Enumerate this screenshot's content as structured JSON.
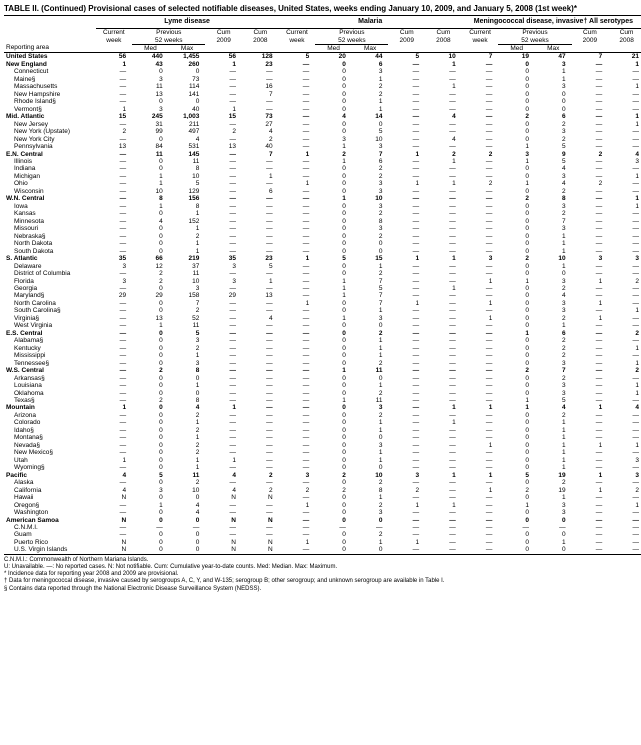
{
  "title": "TABLE II. (Continued) Provisional cases of selected notifiable diseases, United States, weeks ending January 10, 2009, and January 5, 2008 (1st week)*",
  "diseases": [
    "Lyme disease",
    "Malaria",
    "Meningococcal disease, invasive†\nAll serotypes"
  ],
  "subheaders": {
    "current_week": "Current\nweek",
    "previous": "Previous\n52 weeks",
    "med": "Med",
    "max": "Max",
    "cum09": "Cum\n2009",
    "cum08": "Cum\n2008",
    "reporting_area": "Reporting area"
  },
  "footnotes": [
    "C.N.M.I.: Commonwealth of Northern Mariana Islands.",
    "U: Unavailable.    —: No reported cases.    N: Not notifiable.    Cum: Cumulative year-to-date counts.    Med: Median.    Max: Maximum.",
    "* Incidence data for reporting year 2008 and 2009 are provisional.",
    "† Data for meningococcal disease, invasive caused by serogroups A, C, Y, and W-135; serogroup B; other serogroup; and unknown serogroup are available in Table I.",
    "§ Contains data reported through the National Electronic Disease Surveillance System (NEDSS)."
  ],
  "rows": [
    {
      "t": "r",
      "n": "United States",
      "v": [
        "56",
        "440",
        "1,455",
        "56",
        "128",
        "5",
        "20",
        "44",
        "5",
        "10",
        "7",
        "19",
        "47",
        "7",
        "21"
      ]
    },
    {
      "t": "r",
      "n": "New England",
      "v": [
        "1",
        "43",
        "260",
        "1",
        "23",
        "—",
        "0",
        "6",
        "—",
        "1",
        "—",
        "0",
        "3",
        "—",
        "1"
      ]
    },
    {
      "t": "s",
      "n": "Connecticut",
      "v": [
        "—",
        "0",
        "0",
        "—",
        "—",
        "—",
        "0",
        "3",
        "—",
        "—",
        "—",
        "0",
        "1",
        "—",
        "—"
      ]
    },
    {
      "t": "s",
      "n": "Maine§",
      "v": [
        "—",
        "3",
        "73",
        "—",
        "—",
        "—",
        "0",
        "1",
        "—",
        "—",
        "—",
        "0",
        "1",
        "—",
        "—"
      ]
    },
    {
      "t": "s",
      "n": "Massachusetts",
      "v": [
        "—",
        "11",
        "114",
        "—",
        "16",
        "—",
        "0",
        "2",
        "—",
        "1",
        "—",
        "0",
        "3",
        "—",
        "1"
      ]
    },
    {
      "t": "s",
      "n": "New Hampshire",
      "v": [
        "—",
        "13",
        "141",
        "—",
        "7",
        "—",
        "0",
        "2",
        "—",
        "—",
        "—",
        "0",
        "0",
        "—",
        "—"
      ]
    },
    {
      "t": "s",
      "n": "Rhode Island§",
      "v": [
        "—",
        "0",
        "0",
        "—",
        "—",
        "—",
        "0",
        "1",
        "—",
        "—",
        "—",
        "0",
        "0",
        "—",
        "—"
      ]
    },
    {
      "t": "s",
      "n": "Vermont§",
      "v": [
        "1",
        "3",
        "40",
        "1",
        "—",
        "—",
        "0",
        "1",
        "—",
        "—",
        "—",
        "0",
        "0",
        "—",
        "—"
      ]
    },
    {
      "t": "r",
      "n": "Mid. Atlantic",
      "v": [
        "15",
        "245",
        "1,003",
        "15",
        "73",
        "—",
        "4",
        "14",
        "—",
        "4",
        "—",
        "2",
        "6",
        "—",
        "1"
      ]
    },
    {
      "t": "s",
      "n": "New Jersey",
      "v": [
        "—",
        "31",
        "211",
        "—",
        "27",
        "—",
        "0",
        "0",
        "—",
        "—",
        "—",
        "0",
        "2",
        "—",
        "1"
      ]
    },
    {
      "t": "s",
      "n": "New York (Upstate)",
      "v": [
        "2",
        "99",
        "497",
        "2",
        "4",
        "—",
        "0",
        "5",
        "—",
        "—",
        "—",
        "0",
        "3",
        "—",
        "—"
      ]
    },
    {
      "t": "s",
      "n": "New York City",
      "v": [
        "—",
        "0",
        "4",
        "—",
        "2",
        "—",
        "3",
        "10",
        "—",
        "4",
        "—",
        "0",
        "2",
        "—",
        "—"
      ]
    },
    {
      "t": "s",
      "n": "Pennsylvania",
      "v": [
        "13",
        "84",
        "531",
        "13",
        "40",
        "—",
        "1",
        "3",
        "—",
        "—",
        "—",
        "1",
        "5",
        "—",
        "—"
      ]
    },
    {
      "t": "r",
      "n": "E.N. Central",
      "v": [
        "—",
        "11",
        "145",
        "—",
        "7",
        "1",
        "2",
        "7",
        "1",
        "2",
        "2",
        "3",
        "9",
        "2",
        "4"
      ]
    },
    {
      "t": "s",
      "n": "Illinois",
      "v": [
        "—",
        "0",
        "11",
        "—",
        "—",
        "—",
        "1",
        "6",
        "—",
        "1",
        "—",
        "1",
        "5",
        "—",
        "3"
      ]
    },
    {
      "t": "s",
      "n": "Indiana",
      "v": [
        "—",
        "0",
        "8",
        "—",
        "—",
        "—",
        "0",
        "2",
        "—",
        "—",
        "—",
        "0",
        "4",
        "—",
        "—"
      ]
    },
    {
      "t": "s",
      "n": "Michigan",
      "v": [
        "—",
        "1",
        "10",
        "—",
        "1",
        "—",
        "0",
        "2",
        "—",
        "—",
        "—",
        "0",
        "3",
        "—",
        "1"
      ]
    },
    {
      "t": "s",
      "n": "Ohio",
      "v": [
        "—",
        "1",
        "5",
        "—",
        "—",
        "1",
        "0",
        "3",
        "1",
        "1",
        "2",
        "1",
        "4",
        "2",
        "—"
      ]
    },
    {
      "t": "s",
      "n": "Wisconsin",
      "v": [
        "—",
        "10",
        "129",
        "—",
        "6",
        "—",
        "0",
        "3",
        "—",
        "—",
        "—",
        "0",
        "2",
        "—",
        "—"
      ]
    },
    {
      "t": "r",
      "n": "W.N. Central",
      "v": [
        "—",
        "8",
        "156",
        "—",
        "—",
        "—",
        "1",
        "10",
        "—",
        "—",
        "—",
        "2",
        "8",
        "—",
        "1"
      ]
    },
    {
      "t": "s",
      "n": "Iowa",
      "v": [
        "—",
        "1",
        "8",
        "—",
        "—",
        "—",
        "0",
        "3",
        "—",
        "—",
        "—",
        "0",
        "3",
        "—",
        "1"
      ]
    },
    {
      "t": "s",
      "n": "Kansas",
      "v": [
        "—",
        "0",
        "1",
        "—",
        "—",
        "—",
        "0",
        "2",
        "—",
        "—",
        "—",
        "0",
        "2",
        "—",
        "—"
      ]
    },
    {
      "t": "s",
      "n": "Minnesota",
      "v": [
        "—",
        "4",
        "152",
        "—",
        "—",
        "—",
        "0",
        "8",
        "—",
        "—",
        "—",
        "0",
        "7",
        "—",
        "—"
      ]
    },
    {
      "t": "s",
      "n": "Missouri",
      "v": [
        "—",
        "0",
        "1",
        "—",
        "—",
        "—",
        "0",
        "3",
        "—",
        "—",
        "—",
        "0",
        "3",
        "—",
        "—"
      ]
    },
    {
      "t": "s",
      "n": "Nebraska§",
      "v": [
        "—",
        "0",
        "2",
        "—",
        "—",
        "—",
        "0",
        "2",
        "—",
        "—",
        "—",
        "0",
        "1",
        "—",
        "—"
      ]
    },
    {
      "t": "s",
      "n": "North Dakota",
      "v": [
        "—",
        "0",
        "1",
        "—",
        "—",
        "—",
        "0",
        "0",
        "—",
        "—",
        "—",
        "0",
        "1",
        "—",
        "—"
      ]
    },
    {
      "t": "s",
      "n": "South Dakota",
      "v": [
        "—",
        "0",
        "1",
        "—",
        "—",
        "—",
        "0",
        "0",
        "—",
        "—",
        "—",
        "0",
        "1",
        "—",
        "—"
      ]
    },
    {
      "t": "r",
      "n": "S. Atlantic",
      "v": [
        "35",
        "66",
        "219",
        "35",
        "23",
        "1",
        "5",
        "15",
        "1",
        "1",
        "3",
        "2",
        "10",
        "3",
        "3"
      ]
    },
    {
      "t": "s",
      "n": "Delaware",
      "v": [
        "3",
        "12",
        "37",
        "3",
        "5",
        "—",
        "0",
        "1",
        "—",
        "—",
        "—",
        "0",
        "1",
        "—",
        "—"
      ]
    },
    {
      "t": "s",
      "n": "District of Columbia",
      "v": [
        "—",
        "2",
        "11",
        "—",
        "—",
        "—",
        "0",
        "2",
        "—",
        "—",
        "—",
        "0",
        "0",
        "—",
        "—"
      ]
    },
    {
      "t": "s",
      "n": "Florida",
      "v": [
        "3",
        "2",
        "10",
        "3",
        "1",
        "—",
        "1",
        "7",
        "—",
        "—",
        "1",
        "1",
        "3",
        "1",
        "2"
      ]
    },
    {
      "t": "s",
      "n": "Georgia",
      "v": [
        "—",
        "0",
        "3",
        "—",
        "—",
        "—",
        "1",
        "5",
        "—",
        "1",
        "—",
        "0",
        "2",
        "—",
        "—"
      ]
    },
    {
      "t": "s",
      "n": "Maryland§",
      "v": [
        "29",
        "29",
        "158",
        "29",
        "13",
        "—",
        "1",
        "7",
        "—",
        "—",
        "—",
        "0",
        "4",
        "—",
        "—"
      ]
    },
    {
      "t": "s",
      "n": "North Carolina",
      "v": [
        "—",
        "0",
        "7",
        "—",
        "—",
        "1",
        "0",
        "7",
        "1",
        "—",
        "1",
        "0",
        "3",
        "1",
        "—"
      ]
    },
    {
      "t": "s",
      "n": "South Carolina§",
      "v": [
        "—",
        "0",
        "2",
        "—",
        "—",
        "—",
        "0",
        "1",
        "—",
        "—",
        "—",
        "0",
        "3",
        "—",
        "1"
      ]
    },
    {
      "t": "s",
      "n": "Virginia§",
      "v": [
        "—",
        "13",
        "52",
        "—",
        "4",
        "—",
        "1",
        "3",
        "—",
        "—",
        "1",
        "0",
        "2",
        "1",
        "—"
      ]
    },
    {
      "t": "s",
      "n": "West Virginia",
      "v": [
        "—",
        "1",
        "11",
        "—",
        "—",
        "—",
        "0",
        "0",
        "—",
        "—",
        "—",
        "0",
        "1",
        "—",
        "—"
      ]
    },
    {
      "t": "r",
      "n": "E.S. Central",
      "v": [
        "—",
        "0",
        "5",
        "—",
        "—",
        "—",
        "0",
        "2",
        "—",
        "—",
        "—",
        "1",
        "6",
        "—",
        "2"
      ]
    },
    {
      "t": "s",
      "n": "Alabama§",
      "v": [
        "—",
        "0",
        "3",
        "—",
        "—",
        "—",
        "0",
        "1",
        "—",
        "—",
        "—",
        "0",
        "2",
        "—",
        "—"
      ]
    },
    {
      "t": "s",
      "n": "Kentucky",
      "v": [
        "—",
        "0",
        "2",
        "—",
        "—",
        "—",
        "0",
        "1",
        "—",
        "—",
        "—",
        "0",
        "2",
        "—",
        "1"
      ]
    },
    {
      "t": "s",
      "n": "Mississippi",
      "v": [
        "—",
        "0",
        "1",
        "—",
        "—",
        "—",
        "0",
        "1",
        "—",
        "—",
        "—",
        "0",
        "2",
        "—",
        "—"
      ]
    },
    {
      "t": "s",
      "n": "Tennessee§",
      "v": [
        "—",
        "0",
        "3",
        "—",
        "—",
        "—",
        "0",
        "2",
        "—",
        "—",
        "—",
        "0",
        "3",
        "—",
        "1"
      ]
    },
    {
      "t": "r",
      "n": "W.S. Central",
      "v": [
        "—",
        "2",
        "8",
        "—",
        "—",
        "—",
        "1",
        "11",
        "—",
        "—",
        "—",
        "2",
        "7",
        "—",
        "2"
      ]
    },
    {
      "t": "s",
      "n": "Arkansas§",
      "v": [
        "—",
        "0",
        "0",
        "—",
        "—",
        "—",
        "0",
        "0",
        "—",
        "—",
        "—",
        "0",
        "2",
        "—",
        "—"
      ]
    },
    {
      "t": "s",
      "n": "Louisiana",
      "v": [
        "—",
        "0",
        "1",
        "—",
        "—",
        "—",
        "0",
        "1",
        "—",
        "—",
        "—",
        "0",
        "3",
        "—",
        "1"
      ]
    },
    {
      "t": "s",
      "n": "Oklahoma",
      "v": [
        "—",
        "0",
        "0",
        "—",
        "—",
        "—",
        "0",
        "2",
        "—",
        "—",
        "—",
        "0",
        "3",
        "—",
        "1"
      ]
    },
    {
      "t": "s",
      "n": "Texas§",
      "v": [
        "—",
        "2",
        "8",
        "—",
        "—",
        "—",
        "1",
        "11",
        "—",
        "—",
        "—",
        "1",
        "5",
        "—",
        "—"
      ]
    },
    {
      "t": "r",
      "n": "Mountain",
      "v": [
        "1",
        "0",
        "4",
        "1",
        "—",
        "—",
        "0",
        "3",
        "—",
        "1",
        "1",
        "1",
        "4",
        "1",
        "4"
      ]
    },
    {
      "t": "s",
      "n": "Arizona",
      "v": [
        "—",
        "0",
        "2",
        "—",
        "—",
        "—",
        "0",
        "2",
        "—",
        "—",
        "—",
        "0",
        "2",
        "—",
        "—"
      ]
    },
    {
      "t": "s",
      "n": "Colorado",
      "v": [
        "—",
        "0",
        "1",
        "—",
        "—",
        "—",
        "0",
        "1",
        "—",
        "1",
        "—",
        "0",
        "1",
        "—",
        "—"
      ]
    },
    {
      "t": "s",
      "n": "Idaho§",
      "v": [
        "—",
        "0",
        "2",
        "—",
        "—",
        "—",
        "0",
        "1",
        "—",
        "—",
        "—",
        "0",
        "1",
        "—",
        "—"
      ]
    },
    {
      "t": "s",
      "n": "Montana§",
      "v": [
        "—",
        "0",
        "1",
        "—",
        "—",
        "—",
        "0",
        "0",
        "—",
        "—",
        "—",
        "0",
        "1",
        "—",
        "—"
      ]
    },
    {
      "t": "s",
      "n": "Nevada§",
      "v": [
        "—",
        "0",
        "2",
        "—",
        "—",
        "—",
        "0",
        "3",
        "—",
        "—",
        "1",
        "0",
        "1",
        "1",
        "1"
      ]
    },
    {
      "t": "s",
      "n": "New Mexico§",
      "v": [
        "—",
        "0",
        "2",
        "—",
        "—",
        "—",
        "0",
        "1",
        "—",
        "—",
        "—",
        "0",
        "1",
        "—",
        "—"
      ]
    },
    {
      "t": "s",
      "n": "Utah",
      "v": [
        "1",
        "0",
        "1",
        "1",
        "—",
        "—",
        "0",
        "1",
        "—",
        "—",
        "—",
        "0",
        "1",
        "—",
        "3"
      ]
    },
    {
      "t": "s",
      "n": "Wyoming§",
      "v": [
        "—",
        "0",
        "1",
        "—",
        "—",
        "—",
        "0",
        "0",
        "—",
        "—",
        "—",
        "0",
        "1",
        "—",
        "—"
      ]
    },
    {
      "t": "r",
      "n": "Pacific",
      "v": [
        "4",
        "5",
        "11",
        "4",
        "2",
        "3",
        "2",
        "10",
        "3",
        "1",
        "1",
        "5",
        "19",
        "1",
        "3"
      ]
    },
    {
      "t": "s",
      "n": "Alaska",
      "v": [
        "—",
        "0",
        "2",
        "—",
        "—",
        "—",
        "0",
        "2",
        "—",
        "—",
        "—",
        "0",
        "2",
        "—",
        "—"
      ]
    },
    {
      "t": "s",
      "n": "California",
      "v": [
        "4",
        "3",
        "10",
        "4",
        "2",
        "2",
        "2",
        "8",
        "2",
        "—",
        "1",
        "2",
        "19",
        "1",
        "2"
      ]
    },
    {
      "t": "s",
      "n": "Hawaii",
      "v": [
        "N",
        "0",
        "0",
        "N",
        "N",
        "—",
        "0",
        "1",
        "—",
        "—",
        "—",
        "0",
        "1",
        "—",
        "—"
      ]
    },
    {
      "t": "s",
      "n": "Oregon§",
      "v": [
        "—",
        "1",
        "4",
        "—",
        "—",
        "1",
        "0",
        "2",
        "1",
        "1",
        "—",
        "1",
        "3",
        "—",
        "1"
      ]
    },
    {
      "t": "s",
      "n": "Washington",
      "v": [
        "—",
        "0",
        "4",
        "—",
        "—",
        "—",
        "0",
        "3",
        "—",
        "—",
        "—",
        "0",
        "3",
        "—",
        "—"
      ]
    },
    {
      "t": "r",
      "n": "American Samoa",
      "v": [
        "N",
        "0",
        "0",
        "N",
        "N",
        "—",
        "0",
        "0",
        "—",
        "—",
        "—",
        "0",
        "0",
        "—",
        "—"
      ]
    },
    {
      "t": "s",
      "n": "C.N.M.I.",
      "v": [
        "—",
        "—",
        "—",
        "—",
        "—",
        "—",
        "—",
        "—",
        "—",
        "—",
        "—",
        "—",
        "—",
        "—",
        "—"
      ]
    },
    {
      "t": "s",
      "n": "Guam",
      "v": [
        "—",
        "0",
        "0",
        "—",
        "—",
        "—",
        "0",
        "2",
        "—",
        "—",
        "—",
        "0",
        "0",
        "—",
        "—"
      ]
    },
    {
      "t": "s",
      "n": "Puerto Rico",
      "v": [
        "N",
        "0",
        "0",
        "N",
        "N",
        "1",
        "0",
        "1",
        "1",
        "—",
        "—",
        "0",
        "1",
        "—",
        "—"
      ]
    },
    {
      "t": "s",
      "n": "U.S. Virgin Islands",
      "v": [
        "N",
        "0",
        "0",
        "N",
        "N",
        "—",
        "0",
        "0",
        "—",
        "—",
        "—",
        "0",
        "0",
        "—",
        "—"
      ]
    }
  ]
}
